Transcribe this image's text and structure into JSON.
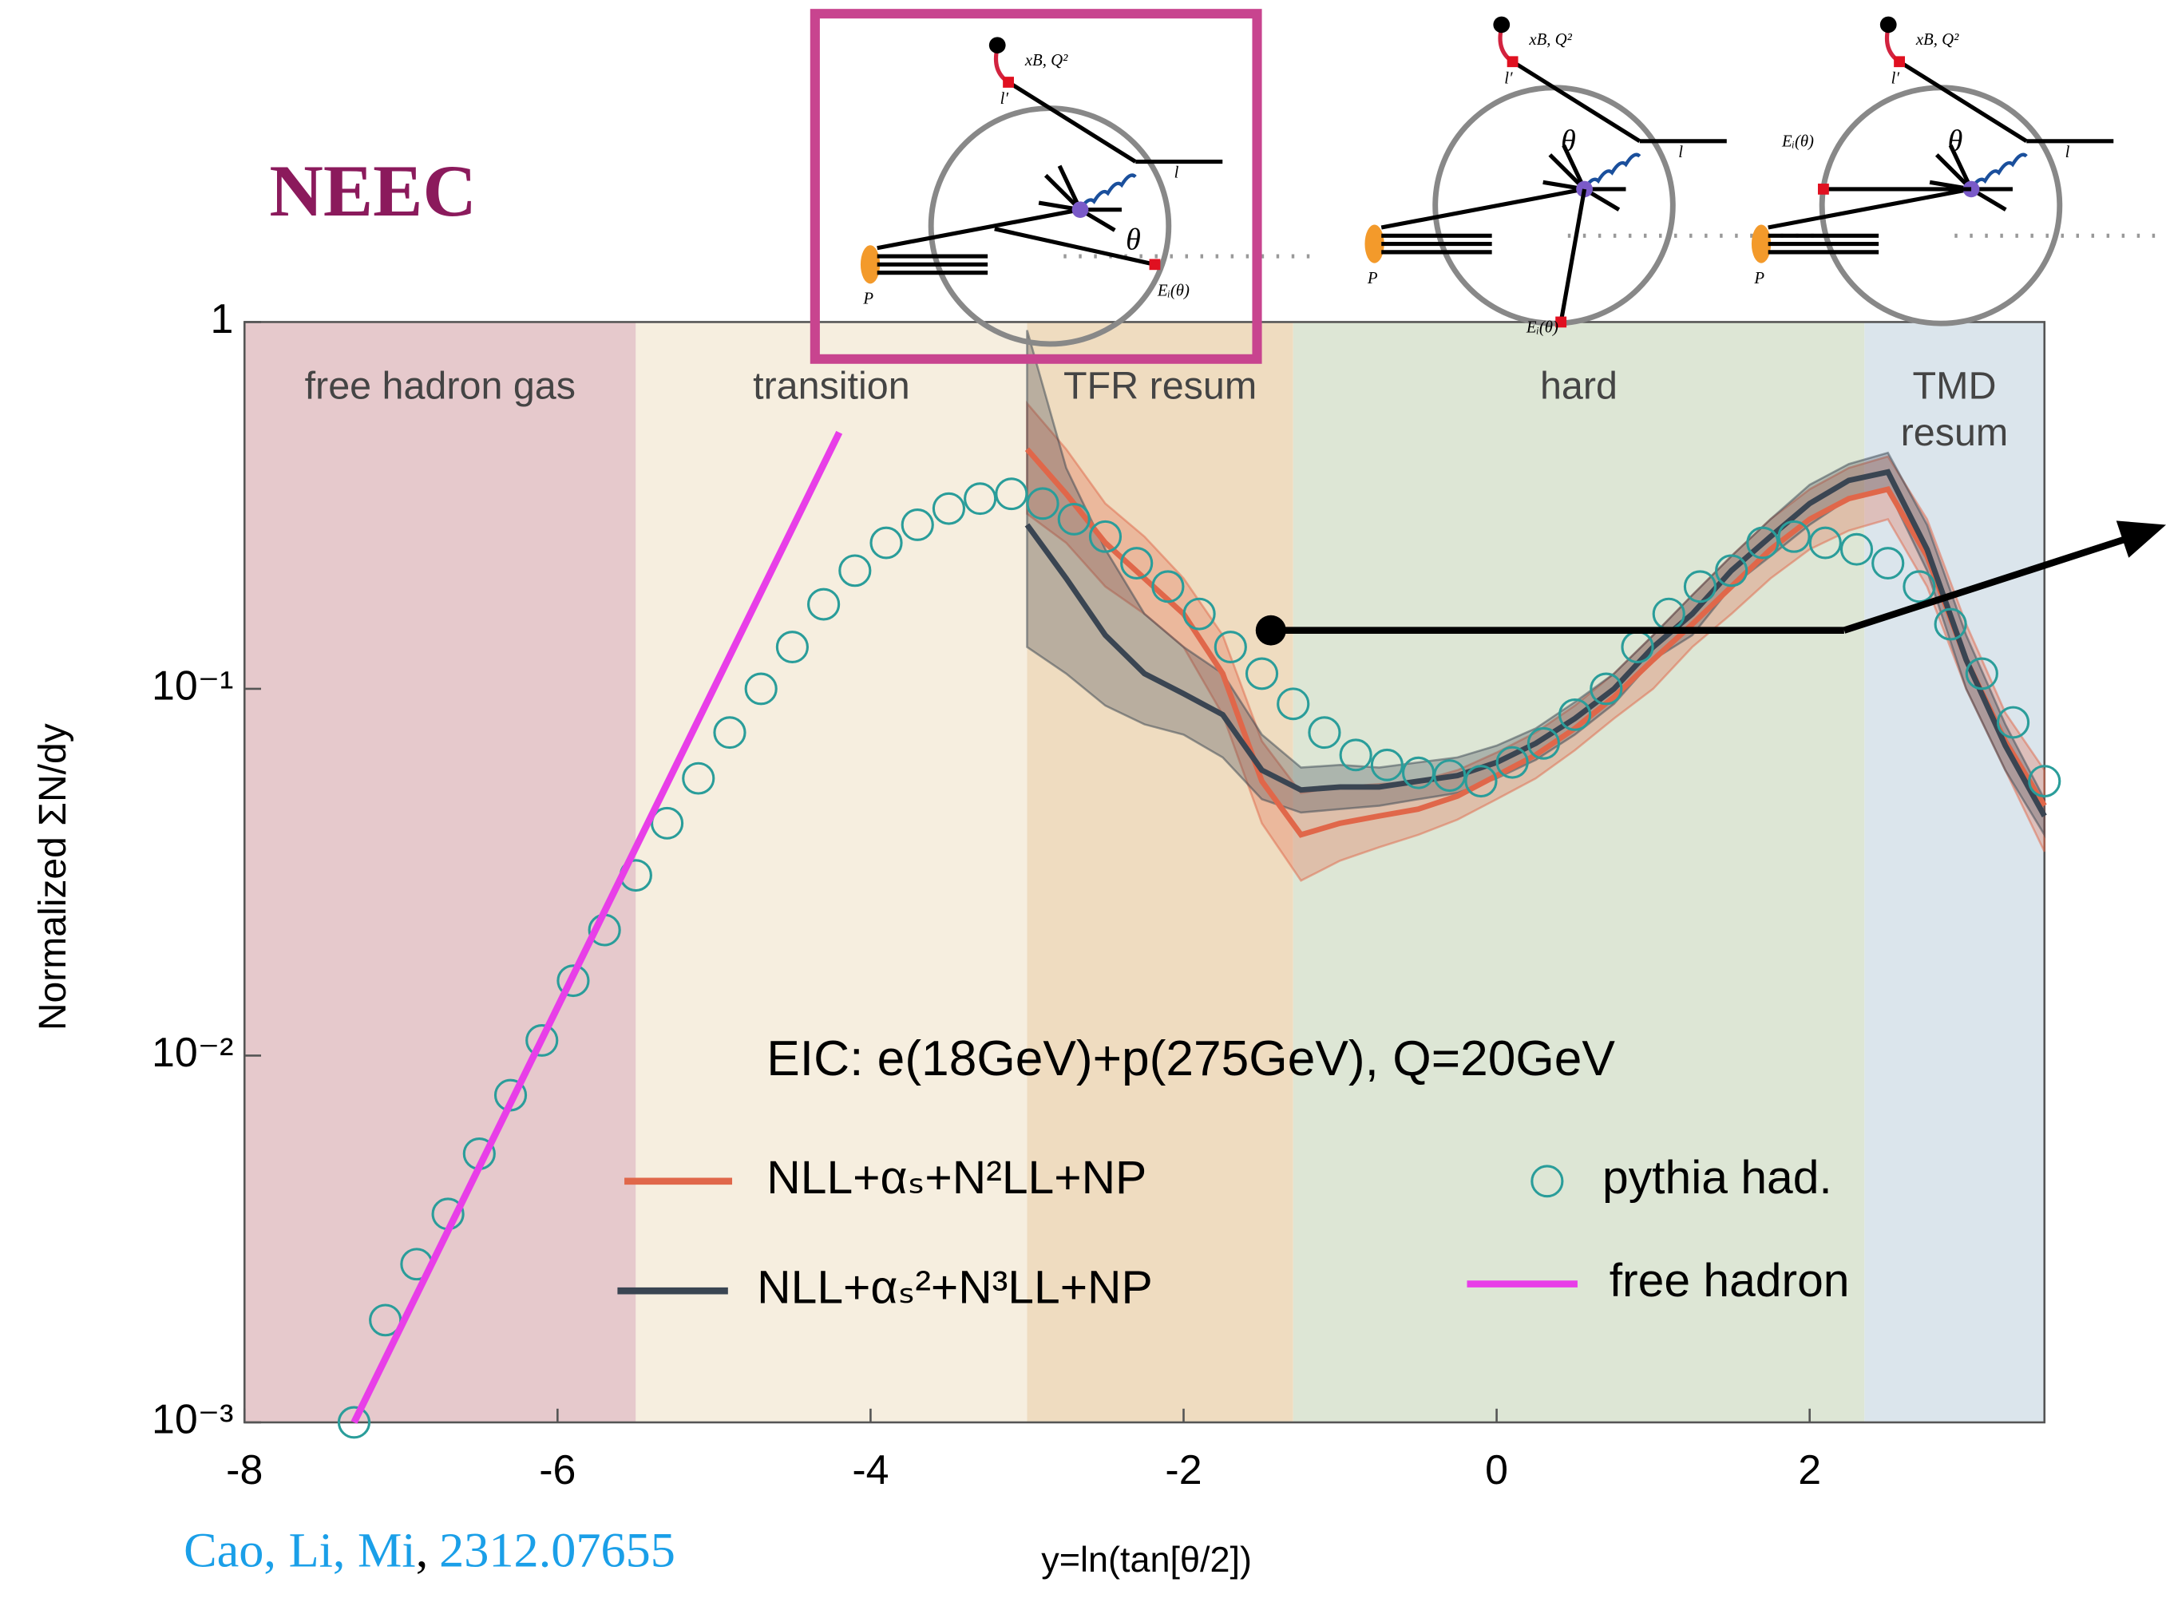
{
  "title": "NEEC",
  "citation": {
    "authors": "Cao, Li, Mi",
    "separator": ",",
    "arxiv": "2312.07655"
  },
  "diagrams": [
    {
      "labels": [
        "xB, Q²",
        "l′",
        "l",
        "θ",
        "P",
        "Eᵢ(θ)"
      ],
      "highlight_color": "#c8448f"
    },
    {
      "labels": [
        "xB, Q²",
        "l′",
        "l",
        "θ",
        "P",
        "Eᵢ(θ)"
      ]
    },
    {
      "labels": [
        "xB, Q²",
        "l′",
        "l",
        "θ",
        "P",
        "Eᵢ(θ)"
      ]
    }
  ],
  "chart_data": {
    "type": "line",
    "log_y": true,
    "x_label": "y=ln(tan[θ/2])",
    "y_label": "Normalized ΣN/dy",
    "annotation": "EIC: e(18GeV)+p(275GeV), Q=20GeV",
    "xlim": [
      -8,
      3.5
    ],
    "xticks": [
      -8,
      -6,
      -4,
      -2,
      0,
      2
    ],
    "ylim": [
      0.001,
      1
    ],
    "yticks": [
      {
        "value": 0.001,
        "label": "10⁻³"
      },
      {
        "value": 0.01,
        "label": "10⁻²"
      },
      {
        "value": 0.1,
        "label": "10⁻¹"
      },
      1
    ],
    "regions": [
      {
        "label": "free hadron gas",
        "from": -8,
        "to": -5.5,
        "color": "#e6c9cc"
      },
      {
        "label": "transition",
        "from": -5.5,
        "to": -3,
        "color": "#f6eedf"
      },
      {
        "label": "TFR resum",
        "from": -3,
        "to": -1.3,
        "color": "#efdcc0"
      },
      {
        "label": "hard",
        "from": -1.3,
        "to": 2.35,
        "color": "#dde6d5"
      },
      {
        "label": "TMD resum",
        "from": 2.35,
        "to": 3.5,
        "color": "#dbe5ec"
      }
    ],
    "series": [
      {
        "name": "NLL+αₛ+N²LL+NP",
        "color": "#e0674a",
        "x": [
          -3,
          -2.75,
          -2.5,
          -2.25,
          -2,
          -1.75,
          -1.5,
          -1.25,
          -1,
          -0.75,
          -0.5,
          -0.25,
          0,
          0.25,
          0.5,
          0.75,
          1,
          1.25,
          1.5,
          1.75,
          2,
          2.25,
          2.5,
          2.75,
          3,
          3.25,
          3.5
        ],
        "values": [
          0.45,
          0.34,
          0.25,
          0.2,
          0.16,
          0.11,
          0.056,
          0.04,
          0.043,
          0.045,
          0.047,
          0.051,
          0.058,
          0.066,
          0.078,
          0.095,
          0.12,
          0.15,
          0.19,
          0.24,
          0.29,
          0.33,
          0.35,
          0.23,
          0.12,
          0.072,
          0.048
        ],
        "lower": [
          0.3,
          0.25,
          0.19,
          0.16,
          0.13,
          0.085,
          0.043,
          0.03,
          0.034,
          0.037,
          0.04,
          0.044,
          0.05,
          0.057,
          0.068,
          0.083,
          0.1,
          0.13,
          0.16,
          0.2,
          0.24,
          0.27,
          0.29,
          0.19,
          0.1,
          0.06,
          0.036
        ],
        "upper": [
          0.6,
          0.45,
          0.32,
          0.26,
          0.2,
          0.14,
          0.072,
          0.052,
          0.054,
          0.055,
          0.056,
          0.06,
          0.067,
          0.076,
          0.09,
          0.11,
          0.14,
          0.18,
          0.23,
          0.29,
          0.35,
          0.4,
          0.43,
          0.29,
          0.15,
          0.086,
          0.06
        ]
      },
      {
        "name": "NLL+αₛ²+N³LL+NP",
        "color": "#3a4552",
        "x": [
          -3,
          -2.75,
          -2.5,
          -2.25,
          -2,
          -1.75,
          -1.5,
          -1.25,
          -1,
          -0.75,
          -0.5,
          -0.25,
          0,
          0.25,
          0.5,
          0.75,
          1,
          1.25,
          1.5,
          1.75,
          2,
          2.25,
          2.5,
          2.75,
          3,
          3.25,
          3.5
        ],
        "values": [
          0.28,
          0.2,
          0.14,
          0.11,
          0.097,
          0.085,
          0.06,
          0.053,
          0.054,
          0.054,
          0.056,
          0.058,
          0.063,
          0.071,
          0.083,
          0.1,
          0.13,
          0.16,
          0.21,
          0.26,
          0.32,
          0.37,
          0.39,
          0.24,
          0.12,
          0.07,
          0.045
        ],
        "lower": [
          0.13,
          0.11,
          0.09,
          0.08,
          0.075,
          0.065,
          0.05,
          0.046,
          0.047,
          0.048,
          0.05,
          0.052,
          0.057,
          0.064,
          0.075,
          0.091,
          0.12,
          0.14,
          0.19,
          0.23,
          0.28,
          0.33,
          0.35,
          0.21,
          0.1,
          0.06,
          0.04
        ],
        "upper": [
          0.95,
          0.4,
          0.24,
          0.16,
          0.13,
          0.11,
          0.075,
          0.061,
          0.062,
          0.061,
          0.063,
          0.065,
          0.07,
          0.078,
          0.092,
          0.11,
          0.14,
          0.18,
          0.23,
          0.29,
          0.36,
          0.41,
          0.44,
          0.28,
          0.14,
          0.08,
          0.05
        ]
      },
      {
        "name": "pythia had.",
        "color": "#2a9d9a",
        "marker": "circle",
        "x": [
          -7.3,
          -7.1,
          -6.9,
          -6.7,
          -6.5,
          -6.3,
          -6.1,
          -5.9,
          -5.7,
          -5.5,
          -5.3,
          -5.1,
          -4.9,
          -4.7,
          -4.5,
          -4.3,
          -4.1,
          -3.9,
          -3.7,
          -3.5,
          -3.3,
          -3.1,
          -2.9,
          -2.7,
          -2.5,
          -2.3,
          -2.1,
          -1.9,
          -1.7,
          -1.5,
          -1.3,
          -1.1,
          -0.9,
          -0.7,
          -0.5,
          -0.3,
          -0.1,
          0.1,
          0.3,
          0.5,
          0.7,
          0.9,
          1.1,
          1.3,
          1.5,
          1.7,
          1.9,
          2.1,
          2.3,
          2.5,
          2.7,
          2.9,
          3.1,
          3.3,
          3.5
        ],
        "values": [
          0.001,
          0.0019,
          0.0027,
          0.0037,
          0.0054,
          0.0078,
          0.011,
          0.016,
          0.022,
          0.031,
          0.043,
          0.057,
          0.076,
          0.1,
          0.13,
          0.17,
          0.21,
          0.25,
          0.28,
          0.31,
          0.33,
          0.34,
          0.32,
          0.29,
          0.26,
          0.22,
          0.19,
          0.16,
          0.13,
          0.11,
          0.091,
          0.076,
          0.066,
          0.062,
          0.059,
          0.058,
          0.056,
          0.063,
          0.071,
          0.085,
          0.1,
          0.13,
          0.16,
          0.19,
          0.21,
          0.25,
          0.26,
          0.25,
          0.24,
          0.22,
          0.19,
          0.15,
          0.11,
          0.081,
          0.056
        ]
      },
      {
        "name": "free hadron",
        "color": "#e83ee8",
        "x": [
          -7.3,
          -4.2
        ],
        "values": [
          0.001,
          0.5
        ]
      }
    ]
  }
}
